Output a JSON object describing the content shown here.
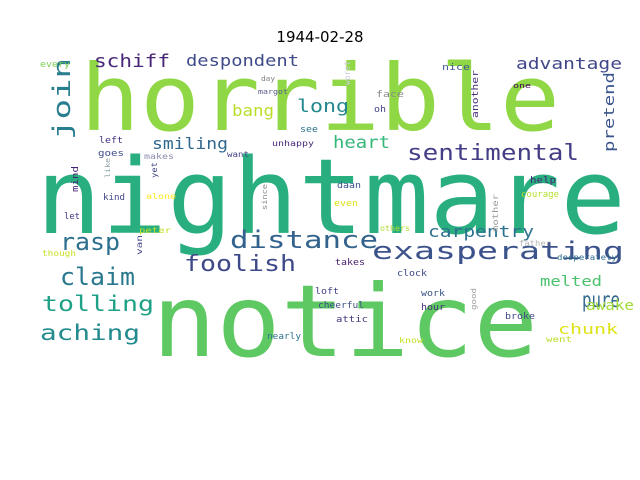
{
  "title": "1944-02-28",
  "words": [
    {
      "t": "horrible",
      "c": "#8fd744"
    },
    {
      "t": "nightmare",
      "c": "#29af7f"
    },
    {
      "t": "notice",
      "c": "#5ec962"
    },
    {
      "t": "exasperating",
      "c": "#3b528b"
    },
    {
      "t": "distance",
      "c": "#33638d"
    },
    {
      "t": "sentimental",
      "c": "#433e85"
    },
    {
      "t": "rasp",
      "c": "#2d708e"
    },
    {
      "t": "claim",
      "c": "#2a788e"
    },
    {
      "t": "foolish",
      "c": "#3e4989"
    },
    {
      "t": "tolling",
      "c": "#1fa187"
    },
    {
      "t": "aching",
      "c": "#238a8d"
    },
    {
      "t": "pure",
      "c": "#31688e"
    },
    {
      "t": "join",
      "c": "#287d8e"
    },
    {
      "t": "schiff",
      "c": "#482677"
    },
    {
      "t": "despondent",
      "c": "#3e4a89"
    },
    {
      "t": "advantage",
      "c": "#404788"
    },
    {
      "t": "long",
      "c": "#23888e"
    },
    {
      "t": "bang",
      "c": "#b8de29"
    },
    {
      "t": "smiling",
      "c": "#31688e"
    },
    {
      "t": "heart",
      "c": "#35b779"
    },
    {
      "t": "carpentry",
      "c": "#2c728e"
    },
    {
      "t": "melted",
      "c": "#4ac16d"
    },
    {
      "t": "awake",
      "c": "#a0da39"
    },
    {
      "t": "chunk",
      "c": "#dde318"
    },
    {
      "t": "pretend",
      "c": "#3a548c"
    },
    {
      "t": "every",
      "c": "#7ad151"
    },
    {
      "t": "day",
      "c": "#7e7e7e"
    },
    {
      "t": "margot",
      "c": "#5a5a8a"
    },
    {
      "t": "worst",
      "c": "#d0c9e6"
    },
    {
      "t": "nice",
      "c": "#3b528b"
    },
    {
      "t": "face",
      "c": "#8a8a8a"
    },
    {
      "t": "oh",
      "c": "#414487"
    },
    {
      "t": "another",
      "c": "#472c7a"
    },
    {
      "t": "one",
      "c": "#440154"
    },
    {
      "t": "left",
      "c": "#46337e"
    },
    {
      "t": "goes",
      "c": "#3d4e8a"
    },
    {
      "t": "like",
      "c": "#87a1a8"
    },
    {
      "t": "makes",
      "c": "#8b8bb0"
    },
    {
      "t": "yet",
      "c": "#414487"
    },
    {
      "t": "want",
      "c": "#414487"
    },
    {
      "t": "unhappy",
      "c": "#482878"
    },
    {
      "t": "see",
      "c": "#2c728e"
    },
    {
      "t": "mind",
      "c": "#482475"
    },
    {
      "t": "kind",
      "c": "#414487"
    },
    {
      "t": "alone",
      "c": "#fde725"
    },
    {
      "t": "since",
      "c": "#8b8b8b"
    },
    {
      "t": "daan",
      "c": "#3b528b"
    },
    {
      "t": "even",
      "c": "#dde318"
    },
    {
      "t": "help",
      "c": "#482576"
    },
    {
      "t": "courage",
      "c": "#b5de2b"
    },
    {
      "t": "mother",
      "c": "#9a9a9a"
    },
    {
      "t": "let",
      "c": "#46327e"
    },
    {
      "t": "peter",
      "c": "#c2df23"
    },
    {
      "t": "van",
      "c": "#414487"
    },
    {
      "t": "others",
      "c": "#b0dd2f"
    },
    {
      "t": "father",
      "c": "#b4b4b4"
    },
    {
      "t": "though",
      "c": "#c8e020"
    },
    {
      "t": "takes",
      "c": "#482173"
    },
    {
      "t": "desperately",
      "c": "#2e6e8e"
    },
    {
      "t": "clock",
      "c": "#3e4989"
    },
    {
      "t": "loft",
      "c": "#414487"
    },
    {
      "t": "cheerful",
      "c": "#3d4e8a"
    },
    {
      "t": "work",
      "c": "#3b528b"
    },
    {
      "t": "good",
      "c": "#9a9a9a"
    },
    {
      "t": "hour",
      "c": "#472d7b"
    },
    {
      "t": "attic",
      "c": "#453781"
    },
    {
      "t": "broke",
      "c": "#3e4989"
    },
    {
      "t": "nearly",
      "c": "#2c728e"
    },
    {
      "t": "know",
      "c": "#c2df23"
    },
    {
      "t": "went",
      "c": "#b8de29"
    }
  ]
}
